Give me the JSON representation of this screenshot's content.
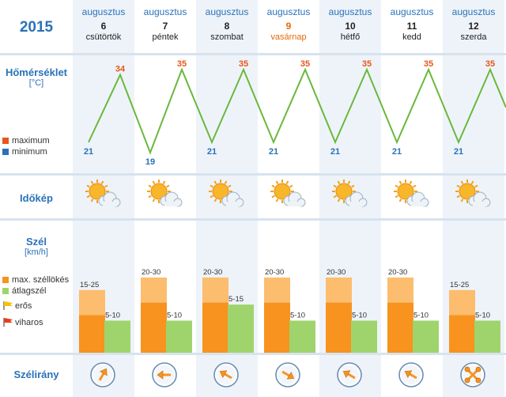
{
  "year": "2015",
  "labels": {
    "temperature": "Hőmérséklet",
    "temperature_unit": "[°C]",
    "maximum": "maximum",
    "minimum": "minimum",
    "sky": "Időkép",
    "wind": "Szél",
    "wind_unit": "[km/h]",
    "gust": "max. széllökés",
    "avg_wind": "átlagszél",
    "strong": "erős",
    "stormy": "viharos",
    "wind_direction": "Szélirány"
  },
  "colors": {
    "max": "#e8561b",
    "min": "#2a72b8",
    "line": "#6ab83a",
    "gust_light": "#fcbd6e",
    "gust_dark": "#f7931e",
    "avg": "#9fd46d",
    "label_blue": "#2a72b8"
  },
  "days": [
    {
      "month": "augusztus",
      "day": "6",
      "weekday": "csütörtök",
      "max": "34",
      "min": "21",
      "gust": "15-25",
      "avg": "5-10",
      "weather_icon": "sun-behind-cloud-icon",
      "dir_icon": "arrow-northeast-icon",
      "sunday": false
    },
    {
      "month": "augusztus",
      "day": "7",
      "weekday": "péntek",
      "max": "35",
      "min": "19",
      "gust": "20-30",
      "avg": "5-10",
      "weather_icon": "sun-behind-cloud-icon",
      "dir_icon": "arrow-west-icon",
      "sunday": false
    },
    {
      "month": "augusztus",
      "day": "8",
      "weekday": "szombat",
      "max": "35",
      "min": "21",
      "gust": "20-30",
      "avg": "5-15",
      "weather_icon": "sun-behind-cloud-icon",
      "dir_icon": "arrow-northwest-icon",
      "sunday": false
    },
    {
      "month": "augusztus",
      "day": "9",
      "weekday": "vasárnap",
      "max": "35",
      "min": "21",
      "gust": "20-30",
      "avg": "5-10",
      "weather_icon": "sun-behind-cloud-icon",
      "dir_icon": "arrow-southeast-icon",
      "sunday": true
    },
    {
      "month": "augusztus",
      "day": "10",
      "weekday": "hétfő",
      "max": "35",
      "min": "21",
      "gust": "20-30",
      "avg": "5-10",
      "weather_icon": "sun-behind-cloud-icon",
      "dir_icon": "arrow-northwest-icon",
      "sunday": false
    },
    {
      "month": "augusztus",
      "day": "11",
      "weekday": "kedd",
      "max": "35",
      "min": "21",
      "gust": "20-30",
      "avg": "5-10",
      "weather_icon": "sun-behind-cloud-icon",
      "dir_icon": "arrow-northwest-icon",
      "sunday": false
    },
    {
      "month": "augusztus",
      "day": "12",
      "weekday": "szerda",
      "max": "35",
      "min": "21",
      "gust": "15-25",
      "avg": "5-10",
      "weather_icon": "sun-behind-cloud-icon",
      "dir_icon": "variable-wind-icon",
      "sunday": false
    }
  ],
  "chart_data": {
    "type": "line",
    "x": [
      "6",
      "7",
      "8",
      "9",
      "10",
      "11",
      "12"
    ],
    "series": [
      {
        "name": "maximum",
        "values": [
          34,
          35,
          35,
          35,
          35,
          35,
          35
        ]
      },
      {
        "name": "minimum",
        "values": [
          21,
          19,
          21,
          21,
          21,
          21,
          21
        ]
      }
    ],
    "wind": {
      "gust_kmh": [
        [
          15,
          25
        ],
        [
          20,
          30
        ],
        [
          20,
          30
        ],
        [
          20,
          30
        ],
        [
          20,
          30
        ],
        [
          20,
          30
        ],
        [
          15,
          25
        ]
      ],
      "avg_kmh": [
        [
          5,
          10
        ],
        [
          5,
          10
        ],
        [
          5,
          15
        ],
        [
          5,
          10
        ],
        [
          5,
          10
        ],
        [
          5,
          10
        ],
        [
          5,
          10
        ]
      ]
    }
  }
}
